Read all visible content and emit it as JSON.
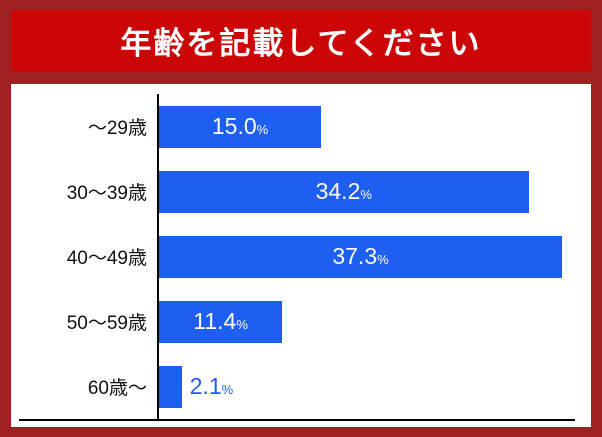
{
  "title": "年齢を記載してください",
  "colors": {
    "frame_background": "#9e2020",
    "banner_background": "#cc0606",
    "bar": "#1e5ef0",
    "value_label_inside": "#ffffff",
    "value_label_outside": "#1e5ef0",
    "axis": "#000000"
  },
  "chart_data": {
    "type": "bar",
    "orientation": "horizontal",
    "title": "年齢を記載してください",
    "categories": [
      "～29歳",
      "30～39歳",
      "40～49歳",
      "50～59歳",
      "60歳～"
    ],
    "values": [
      15.0,
      34.2,
      37.3,
      11.4,
      2.1
    ],
    "value_labels": [
      "15.0",
      "34.2",
      "37.3",
      "11.4",
      "2.1"
    ],
    "unit": "%",
    "xlim": [
      0,
      38.5
    ],
    "grid": false,
    "legend": false,
    "value_label_outside_threshold": 5
  }
}
